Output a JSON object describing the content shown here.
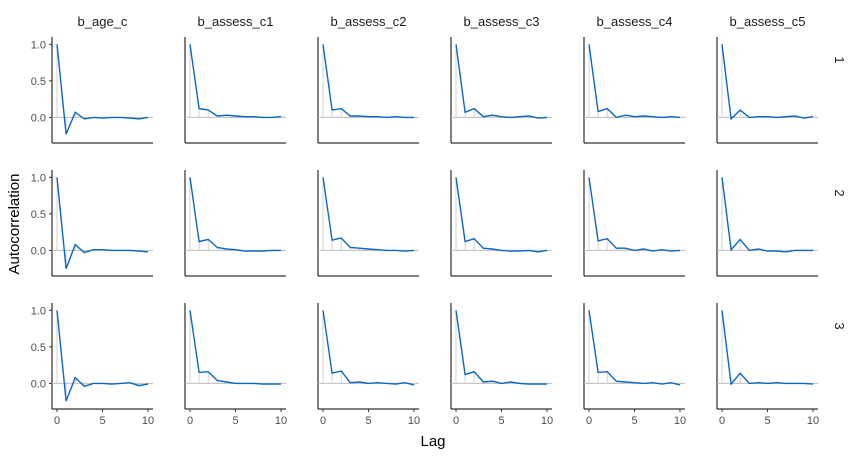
{
  "chart_data": {
    "type": "line",
    "xlabel": "Lag",
    "ylabel": "Autocorrelation",
    "xlim": [
      0,
      10
    ],
    "ylim": [
      -0.35,
      1.1
    ],
    "x_ticks": [
      0,
      5,
      10
    ],
    "y_ticks": [
      1.0,
      0.5,
      0.0
    ],
    "x_tick_labels": [
      "0",
      "5",
      "10"
    ],
    "y_tick_labels": [
      "1.0",
      "0.5",
      "0.0"
    ],
    "columns": [
      "b_age_c",
      "b_assess_c1",
      "b_assess_c2",
      "b_assess_c3",
      "b_assess_c4",
      "b_assess_c5"
    ],
    "rows": [
      "1",
      "2",
      "3"
    ],
    "lags": [
      0,
      1,
      2,
      3,
      4,
      5,
      6,
      7,
      8,
      9,
      10
    ],
    "line_color": "#0a66c2",
    "panels": [
      {
        "row": "1",
        "col": "b_age_c",
        "values": [
          1.0,
          -0.23,
          0.07,
          -0.02,
          0.0,
          -0.01,
          0.0,
          0.0,
          -0.01,
          -0.02,
          0.0
        ]
      },
      {
        "row": "1",
        "col": "b_assess_c1",
        "values": [
          1.0,
          0.12,
          0.1,
          0.02,
          0.03,
          0.02,
          0.01,
          0.01,
          0.0,
          0.0,
          0.01
        ]
      },
      {
        "row": "1",
        "col": "b_assess_c2",
        "values": [
          1.0,
          0.1,
          0.12,
          0.02,
          0.02,
          0.01,
          0.01,
          0.0,
          0.01,
          0.0,
          0.0
        ]
      },
      {
        "row": "1",
        "col": "b_assess_c3",
        "values": [
          1.0,
          0.07,
          0.12,
          0.01,
          0.03,
          0.01,
          0.0,
          0.01,
          0.02,
          -0.01,
          0.0
        ]
      },
      {
        "row": "1",
        "col": "b_assess_c4",
        "values": [
          1.0,
          0.08,
          0.12,
          0.0,
          0.03,
          0.01,
          0.02,
          0.01,
          0.0,
          0.01,
          0.0
        ]
      },
      {
        "row": "1",
        "col": "b_assess_c5",
        "values": [
          1.0,
          -0.02,
          0.1,
          0.0,
          0.01,
          0.01,
          0.0,
          0.01,
          0.02,
          -0.01,
          0.01
        ]
      },
      {
        "row": "2",
        "col": "b_age_c",
        "values": [
          1.0,
          -0.25,
          0.08,
          -0.03,
          0.01,
          0.01,
          0.0,
          0.0,
          0.0,
          -0.01,
          -0.02
        ]
      },
      {
        "row": "2",
        "col": "b_assess_c1",
        "values": [
          1.0,
          0.12,
          0.15,
          0.04,
          0.02,
          0.01,
          -0.01,
          -0.01,
          -0.01,
          0.0,
          0.0
        ]
      },
      {
        "row": "2",
        "col": "b_assess_c2",
        "values": [
          1.0,
          0.14,
          0.17,
          0.04,
          0.03,
          0.02,
          0.01,
          0.0,
          0.0,
          -0.01,
          0.0
        ]
      },
      {
        "row": "2",
        "col": "b_assess_c3",
        "values": [
          1.0,
          0.12,
          0.16,
          0.03,
          0.02,
          0.0,
          -0.01,
          -0.01,
          0.0,
          -0.02,
          0.0
        ]
      },
      {
        "row": "2",
        "col": "b_assess_c4",
        "values": [
          1.0,
          0.13,
          0.16,
          0.03,
          0.03,
          0.0,
          0.02,
          -0.01,
          0.01,
          -0.01,
          0.0
        ]
      },
      {
        "row": "2",
        "col": "b_assess_c5",
        "values": [
          1.0,
          0.01,
          0.15,
          0.0,
          0.02,
          -0.01,
          -0.01,
          -0.02,
          0.0,
          0.0,
          0.0
        ]
      },
      {
        "row": "3",
        "col": "b_age_c",
        "values": [
          1.0,
          -0.24,
          0.08,
          -0.04,
          0.0,
          0.0,
          -0.01,
          0.0,
          0.01,
          -0.03,
          -0.01
        ]
      },
      {
        "row": "3",
        "col": "b_assess_c1",
        "values": [
          1.0,
          0.15,
          0.16,
          0.04,
          0.02,
          0.0,
          0.0,
          0.0,
          -0.01,
          -0.01,
          -0.01
        ]
      },
      {
        "row": "3",
        "col": "b_assess_c2",
        "values": [
          1.0,
          0.14,
          0.17,
          0.01,
          0.02,
          0.0,
          0.01,
          0.0,
          -0.01,
          0.01,
          -0.02
        ]
      },
      {
        "row": "3",
        "col": "b_assess_c3",
        "values": [
          1.0,
          0.12,
          0.16,
          0.02,
          0.03,
          0.0,
          0.02,
          0.0,
          -0.01,
          -0.01,
          -0.01
        ]
      },
      {
        "row": "3",
        "col": "b_assess_c4",
        "values": [
          1.0,
          0.15,
          0.16,
          0.03,
          0.02,
          0.01,
          0.0,
          0.01,
          -0.01,
          0.01,
          -0.02
        ]
      },
      {
        "row": "3",
        "col": "b_assess_c5",
        "values": [
          1.0,
          -0.01,
          0.14,
          0.0,
          0.01,
          0.0,
          0.01,
          0.0,
          0.0,
          0.0,
          -0.01
        ]
      }
    ]
  }
}
